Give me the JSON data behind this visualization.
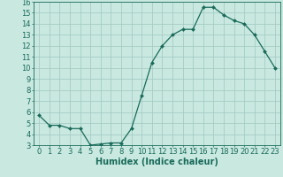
{
  "x": [
    0,
    1,
    2,
    3,
    4,
    5,
    6,
    7,
    8,
    9,
    10,
    11,
    12,
    13,
    14,
    15,
    16,
    17,
    18,
    19,
    20,
    21,
    22,
    23
  ],
  "y": [
    5.7,
    4.8,
    4.8,
    4.5,
    4.5,
    3.0,
    3.1,
    3.2,
    3.2,
    4.5,
    7.5,
    10.5,
    12.0,
    13.0,
    13.5,
    13.5,
    15.5,
    15.5,
    14.8,
    14.3,
    14.0,
    13.0,
    11.5,
    10.0
  ],
  "line_color": "#1a6b5a",
  "marker": "D",
  "markersize": 2.0,
  "linewidth": 0.9,
  "bg_color": "#c8e8e0",
  "grid_color": "#a0c8c0",
  "xlabel": "Humidex (Indice chaleur)",
  "xlim": [
    -0.5,
    23.5
  ],
  "ylim": [
    3,
    16
  ],
  "yticks": [
    3,
    4,
    5,
    6,
    7,
    8,
    9,
    10,
    11,
    12,
    13,
    14,
    15,
    16
  ],
  "xticks": [
    0,
    1,
    2,
    3,
    4,
    5,
    6,
    7,
    8,
    9,
    10,
    11,
    12,
    13,
    14,
    15,
    16,
    17,
    18,
    19,
    20,
    21,
    22,
    23
  ],
  "xlabel_fontsize": 7,
  "tick_fontsize": 6
}
